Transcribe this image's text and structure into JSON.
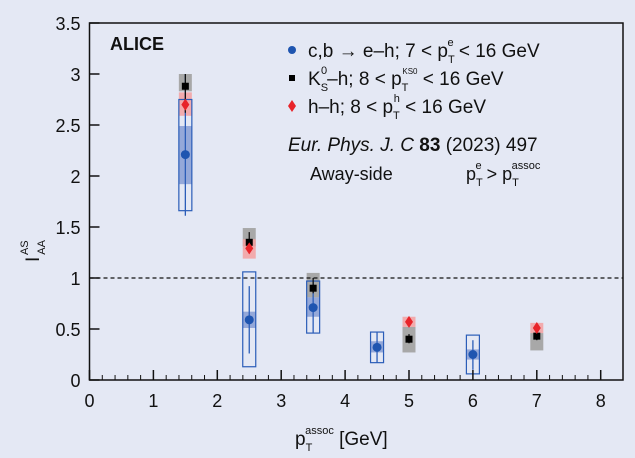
{
  "chart_data": {
    "type": "scatter",
    "xlabel": {
      "main": "p",
      "sub": "T",
      "sup": "assoc",
      "unit": " [GeV]"
    },
    "ylabel": {
      "main": "I",
      "sub": "AA",
      "sup": "AS"
    },
    "xlim": [
      0,
      8.35
    ],
    "ylim": [
      0,
      3.5
    ],
    "xticks": [
      "0",
      "1",
      "2",
      "3",
      "4",
      "5",
      "6",
      "7",
      "8"
    ],
    "yticks": [
      "0",
      "0.5",
      "1",
      "1.5",
      "2",
      "2.5",
      "3",
      "3.5"
    ],
    "reference_line": 1,
    "experiment_label": "ALICE",
    "reference": {
      "journal": "Eur. Phys. J. C ",
      "volume": "83",
      "rest": " (2023) 497"
    },
    "selection": {
      "side": "Away-side",
      "cut_main": "p",
      "cut_sub": "T",
      "cut_sup": "e",
      "cut_op": " > p",
      "cut_sub2": "T",
      "cut_sup2": "assoc"
    },
    "legend_placement": "top-right",
    "series": [
      {
        "name": "c,b → e–h; 7 < pTe < 16 GeV",
        "legend": {
          "pre": "c,b → e–h; 7 < p",
          "sub": "T",
          "sup": "e",
          "post": " < 16 GeV"
        },
        "marker": "circle",
        "color": "#1f55b0",
        "points": [
          {
            "x": 1.5,
            "y": 2.21,
            "stat": [
              1.61,
              3.0
            ],
            "sys": [
              1.66,
              2.75
            ],
            "sys2": [
              1.92,
              2.49
            ]
          },
          {
            "x": 2.5,
            "y": 0.59,
            "stat": [
              0.26,
              0.92
            ],
            "sys": [
              0.13,
              1.06
            ],
            "sys2": [
              0.51,
              0.67
            ]
          },
          {
            "x": 3.5,
            "y": 0.71,
            "stat": [
              0.46,
              0.97
            ],
            "sys": [
              0.46,
              0.97
            ],
            "sys2": [
              0.62,
              0.81
            ]
          },
          {
            "x": 4.5,
            "y": 0.32,
            "stat": [
              0.17,
              0.47
            ],
            "sys": [
              0.17,
              0.47
            ],
            "sys2": [
              0.27,
              0.38
            ]
          },
          {
            "x": 6.0,
            "y": 0.25,
            "stat": [
              0.1,
              0.39
            ],
            "sys": [
              0.06,
              0.44
            ],
            "sys2": [
              0.2,
              0.3
            ]
          }
        ]
      },
      {
        "name": "KS0–h; 8 < pTKS0 < 16 GeV",
        "legend": {
          "pre": "K",
          "sub0": "S",
          "sup0": "0",
          "mid": "–h; 8 < p",
          "sub": "T",
          "sup": "KS0",
          "post": " < 16 GeV"
        },
        "marker": "square",
        "color": "#000000",
        "sys_color": "#a8a8a8",
        "points": [
          {
            "x": 1.5,
            "y": 2.88,
            "stat": [
              2.62,
              3.0
            ],
            "sys": [
              2.83,
              3.0
            ]
          },
          {
            "x": 2.5,
            "y": 1.35,
            "stat": [
              1.24,
              1.45
            ],
            "sys": [
              1.31,
              1.49
            ]
          },
          {
            "x": 3.5,
            "y": 0.9,
            "stat": [
              0.85,
              1.0
            ],
            "sys": [
              0.81,
              1.05
            ]
          },
          {
            "x": 5.0,
            "y": 0.4,
            "stat": [
              0.36,
              0.45
            ],
            "sys": [
              0.27,
              0.52
            ]
          },
          {
            "x": 7.0,
            "y": 0.43,
            "stat": [
              0.39,
              0.48
            ],
            "sys": [
              0.29,
              0.46
            ]
          }
        ]
      },
      {
        "name": "h–h; 8 < pTh < 16 GeV",
        "legend": {
          "pre": "h–h; 8 < p",
          "sub": "T",
          "sup": "h",
          "post": " < 16 GeV"
        },
        "marker": "diamond",
        "color": "#e8242a",
        "sys_color": "#f4a0a0",
        "points": [
          {
            "x": 1.5,
            "y": 2.7,
            "sys": [
              2.59,
              2.82
            ]
          },
          {
            "x": 2.5,
            "y": 1.29,
            "sys": [
              1.19,
              1.38
            ]
          },
          {
            "x": 5.0,
            "y": 0.57,
            "sys": [
              0.52,
              0.62
            ]
          },
          {
            "x": 7.0,
            "y": 0.51,
            "sys": [
              0.46,
              0.56
            ]
          }
        ]
      }
    ]
  }
}
